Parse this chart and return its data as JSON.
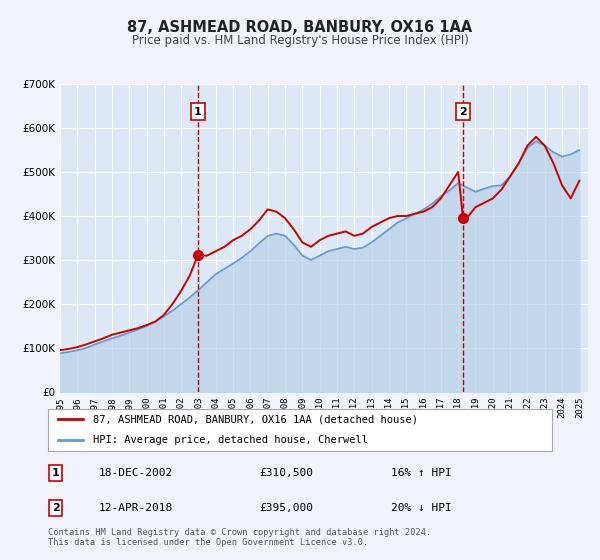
{
  "title": "87, ASHMEAD ROAD, BANBURY, OX16 1AA",
  "subtitle": "Price paid vs. HM Land Registry's House Price Index (HPI)",
  "bg_color": "#f0f4fa",
  "plot_bg_color": "#dce8f5",
  "grid_color": "#ffffff",
  "red_line_color": "#cc0000",
  "blue_line_color": "#6699cc",
  "blue_fill_color": "#b8d0e8",
  "ylim": [
    0,
    700000
  ],
  "yticks": [
    0,
    100000,
    200000,
    300000,
    400000,
    500000,
    600000,
    700000
  ],
  "ytick_labels": [
    "£0",
    "£100K",
    "£200K",
    "£300K",
    "£400K",
    "£500K",
    "£600K",
    "£700K"
  ],
  "xlim_start": 1995.0,
  "xlim_end": 2025.5,
  "xticks": [
    1995,
    1996,
    1997,
    1998,
    1999,
    2000,
    2001,
    2002,
    2003,
    2004,
    2005,
    2006,
    2007,
    2008,
    2009,
    2010,
    2011,
    2012,
    2013,
    2014,
    2015,
    2016,
    2017,
    2018,
    2019,
    2020,
    2021,
    2022,
    2023,
    2024,
    2025
  ],
  "marker1_x": 2002.96,
  "marker1_y": 310500,
  "marker2_x": 2018.28,
  "marker2_y": 395000,
  "vline1_x": 2002.96,
  "vline2_x": 2018.28,
  "legend_label_red": "87, ASHMEAD ROAD, BANBURY, OX16 1AA (detached house)",
  "legend_label_blue": "HPI: Average price, detached house, Cherwell",
  "annotation1_label": "1",
  "annotation1_date": "18-DEC-2002",
  "annotation1_price": "£310,500",
  "annotation1_hpi": "16% ↑ HPI",
  "annotation2_label": "2",
  "annotation2_date": "12-APR-2018",
  "annotation2_price": "£395,000",
  "annotation2_hpi": "20% ↓ HPI",
  "footnote": "Contains HM Land Registry data © Crown copyright and database right 2024.\nThis data is licensed under the Open Government Licence v3.0.",
  "red_x": [
    1995.0,
    1995.5,
    1996.0,
    1996.5,
    1997.0,
    1997.5,
    1998.0,
    1998.5,
    1999.0,
    1999.5,
    2000.0,
    2000.5,
    2001.0,
    2001.5,
    2002.0,
    2002.5,
    2002.96,
    2003.5,
    2004.0,
    2004.5,
    2005.0,
    2005.5,
    2006.0,
    2006.5,
    2007.0,
    2007.5,
    2008.0,
    2008.5,
    2009.0,
    2009.5,
    2010.0,
    2010.5,
    2011.0,
    2011.5,
    2012.0,
    2012.5,
    2013.0,
    2013.5,
    2014.0,
    2014.5,
    2015.0,
    2015.5,
    2016.0,
    2016.5,
    2017.0,
    2017.5,
    2018.0,
    2018.28,
    2018.5,
    2019.0,
    2019.5,
    2020.0,
    2020.5,
    2021.0,
    2021.5,
    2022.0,
    2022.5,
    2023.0,
    2023.5,
    2024.0,
    2024.5,
    2025.0
  ],
  "red_y": [
    95000,
    98000,
    102000,
    108000,
    115000,
    122000,
    130000,
    135000,
    140000,
    145000,
    152000,
    160000,
    175000,
    200000,
    230000,
    265000,
    310500,
    310000,
    320000,
    330000,
    345000,
    355000,
    370000,
    390000,
    415000,
    410000,
    395000,
    370000,
    340000,
    330000,
    345000,
    355000,
    360000,
    365000,
    355000,
    360000,
    375000,
    385000,
    395000,
    400000,
    400000,
    405000,
    410000,
    420000,
    440000,
    470000,
    500000,
    395000,
    395000,
    420000,
    430000,
    440000,
    460000,
    490000,
    520000,
    560000,
    580000,
    560000,
    520000,
    470000,
    440000,
    480000
  ],
  "blue_x": [
    1995.0,
    1995.5,
    1996.0,
    1996.5,
    1997.0,
    1997.5,
    1998.0,
    1998.5,
    1999.0,
    1999.5,
    2000.0,
    2000.5,
    2001.0,
    2001.5,
    2002.0,
    2002.5,
    2003.0,
    2003.5,
    2004.0,
    2004.5,
    2005.0,
    2005.5,
    2006.0,
    2006.5,
    2007.0,
    2007.5,
    2008.0,
    2008.5,
    2009.0,
    2009.5,
    2010.0,
    2010.5,
    2011.0,
    2011.5,
    2012.0,
    2012.5,
    2013.0,
    2013.5,
    2014.0,
    2014.5,
    2015.0,
    2015.5,
    2016.0,
    2016.5,
    2017.0,
    2017.5,
    2018.0,
    2018.5,
    2019.0,
    2019.5,
    2020.0,
    2020.5,
    2021.0,
    2021.5,
    2022.0,
    2022.5,
    2023.0,
    2023.5,
    2024.0,
    2024.5,
    2025.0
  ],
  "blue_y": [
    88000,
    91000,
    95000,
    100000,
    108000,
    115000,
    122000,
    128000,
    135000,
    142000,
    150000,
    160000,
    172000,
    185000,
    200000,
    215000,
    232000,
    250000,
    268000,
    280000,
    292000,
    305000,
    320000,
    338000,
    355000,
    360000,
    355000,
    335000,
    310000,
    300000,
    310000,
    320000,
    325000,
    330000,
    325000,
    328000,
    340000,
    355000,
    370000,
    385000,
    395000,
    405000,
    415000,
    428000,
    445000,
    458000,
    475000,
    465000,
    455000,
    462000,
    468000,
    470000,
    490000,
    520000,
    555000,
    570000,
    560000,
    545000,
    535000,
    540000,
    550000
  ]
}
